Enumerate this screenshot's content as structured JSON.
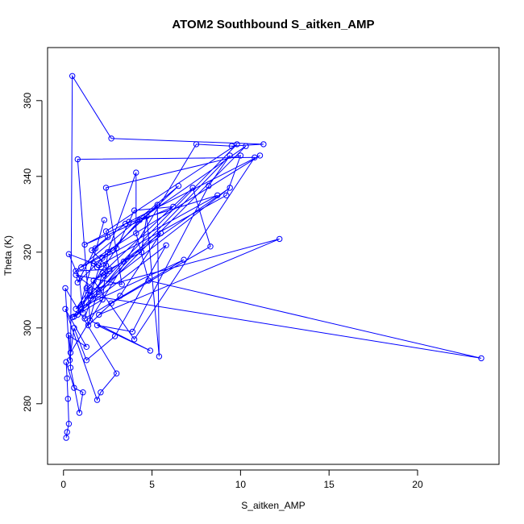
{
  "chart_data": {
    "type": "line",
    "title": "ATOM2 Southbound S_aitken_AMP",
    "xlabel": "S_aitken_AMP",
    "ylabel": "Theta (K)",
    "xlim": [
      -0.9,
      24.6
    ],
    "ylim": [
      264,
      374
    ],
    "xticks": [
      0,
      5,
      10,
      15,
      20
    ],
    "yticks": [
      280,
      300,
      320,
      340,
      360
    ],
    "grid": false,
    "color": "#0000ff",
    "series": [
      {
        "x": [
          0.15,
          0.2,
          0.3,
          0.25,
          0.2,
          0.15,
          0.6,
          1.1,
          0.9,
          0.4,
          0.5,
          2.7,
          11.3,
          9.5,
          7.5,
          0.4,
          0.3,
          1.3,
          0.1,
          1.9,
          2.1,
          3.0,
          0.1,
          0.35,
          0.6,
          1.3,
          2.9,
          5.8,
          0.5,
          2.6,
          1.7,
          4.0,
          10.8,
          0.8,
          1.5,
          4.9,
          1.9,
          3.9,
          8.2,
          9.4,
          0.6,
          2.2,
          2.5,
          4.1,
          4.1,
          4.8,
          23.6,
          1.6,
          1.2,
          6.8,
          1.0,
          1.5,
          12.2,
          2.0,
          3.2,
          5.5,
          2.3,
          2.2,
          1.4,
          2.7,
          8.3,
          7.3,
          1.3,
          1.1,
          0.9,
          0.3,
          2.0,
          9.2,
          10.0,
          2.4,
          3.3,
          0.7,
          2.0,
          3.4,
          9.4,
          1.5,
          2.2,
          6.5,
          0.7,
          2.6,
          4.4,
          4.7,
          5.4,
          5.3,
          0.8,
          1.8,
          3.5,
          8.7,
          1.7,
          1.9,
          2.4,
          1.6,
          2.5,
          2.4,
          9.8,
          0.7,
          3.0,
          4.0,
          6.2,
          1.2,
          3.7,
          11.1,
          1.0,
          2.8,
          4.3,
          10.3,
          0.8,
          2.3
        ],
        "y": [
          271.0,
          272.5,
          274.7,
          281.3,
          286.7,
          291.0,
          284.2,
          283.0,
          277.6,
          289.5,
          366.5,
          350.0,
          348.5,
          348.0,
          348.5,
          293.5,
          298.0,
          295.0,
          305.0,
          281.0,
          283.0,
          288.0,
          310.5,
          291.5,
          300.0,
          291.5,
          297.8,
          321.8,
          302.8,
          315.0,
          312.5,
          297.0,
          345.0,
          344.5,
          302.0,
          294.0,
          300.7,
          299.0,
          337.5,
          345.5,
          303.0,
          307.5,
          320.0,
          341.0,
          325.0,
          312.5,
          292.0,
          308.5,
          302.5,
          318.0,
          305.5,
          310.0,
          323.5,
          303.5,
          308.5,
          325.0,
          314.0,
          314.5,
          300.7,
          306.5,
          321.5,
          337.0,
          310.5,
          304.0,
          313.0,
          319.5,
          316.5,
          335.0,
          345.5,
          337.0,
          311.5,
          314.0,
          309.5,
          317.5,
          337.0,
          308.5,
          318.5,
          337.5,
          315.0,
          315.5,
          320.0,
          329.5,
          292.5,
          332.5,
          312.0,
          321.0,
          327.5,
          335.0,
          317.0,
          316.0,
          316.5,
          320.5,
          324.0,
          325.5,
          348.5,
          305.0,
          321.0,
          331.0,
          332.0,
          322.0,
          328.0,
          345.5,
          316.0,
          320.5,
          328.5,
          348.0,
          303.5,
          328.5
        ]
      }
    ]
  }
}
